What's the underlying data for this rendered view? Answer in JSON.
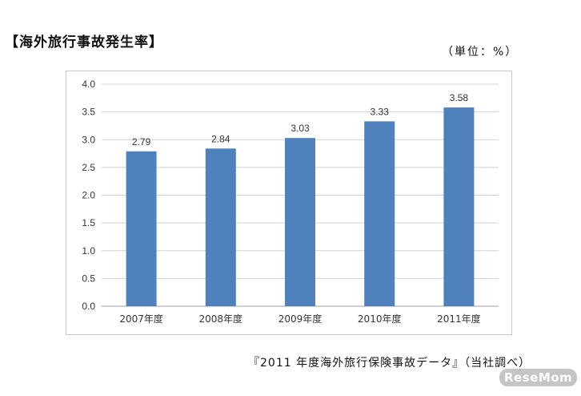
{
  "title": "【海外旅行事故発生率】",
  "unit_note": "（単位：%）",
  "source_note": "『2011 年度海外旅行保険事故データ』（当社調べ）",
  "watermark": "ReseMom",
  "colors": {
    "bar": "#4f81bd",
    "grid": "#d0d0d0",
    "axis_text": "#333333"
  },
  "chart_data": {
    "type": "bar",
    "categories": [
      "2007年度",
      "2008年度",
      "2009年度",
      "2010年度",
      "2011年度"
    ],
    "values": [
      2.79,
      2.84,
      3.03,
      3.33,
      3.58
    ],
    "value_labels": [
      "2.79",
      "2.84",
      "3.03",
      "3.33",
      "3.58"
    ],
    "y_ticks": [
      "0.0",
      "0.5",
      "1.0",
      "1.5",
      "2.0",
      "2.5",
      "3.0",
      "3.5",
      "4.0"
    ],
    "ylim": [
      0,
      4.0
    ],
    "ystep": 0.5,
    "grid": true,
    "legend": "none"
  }
}
